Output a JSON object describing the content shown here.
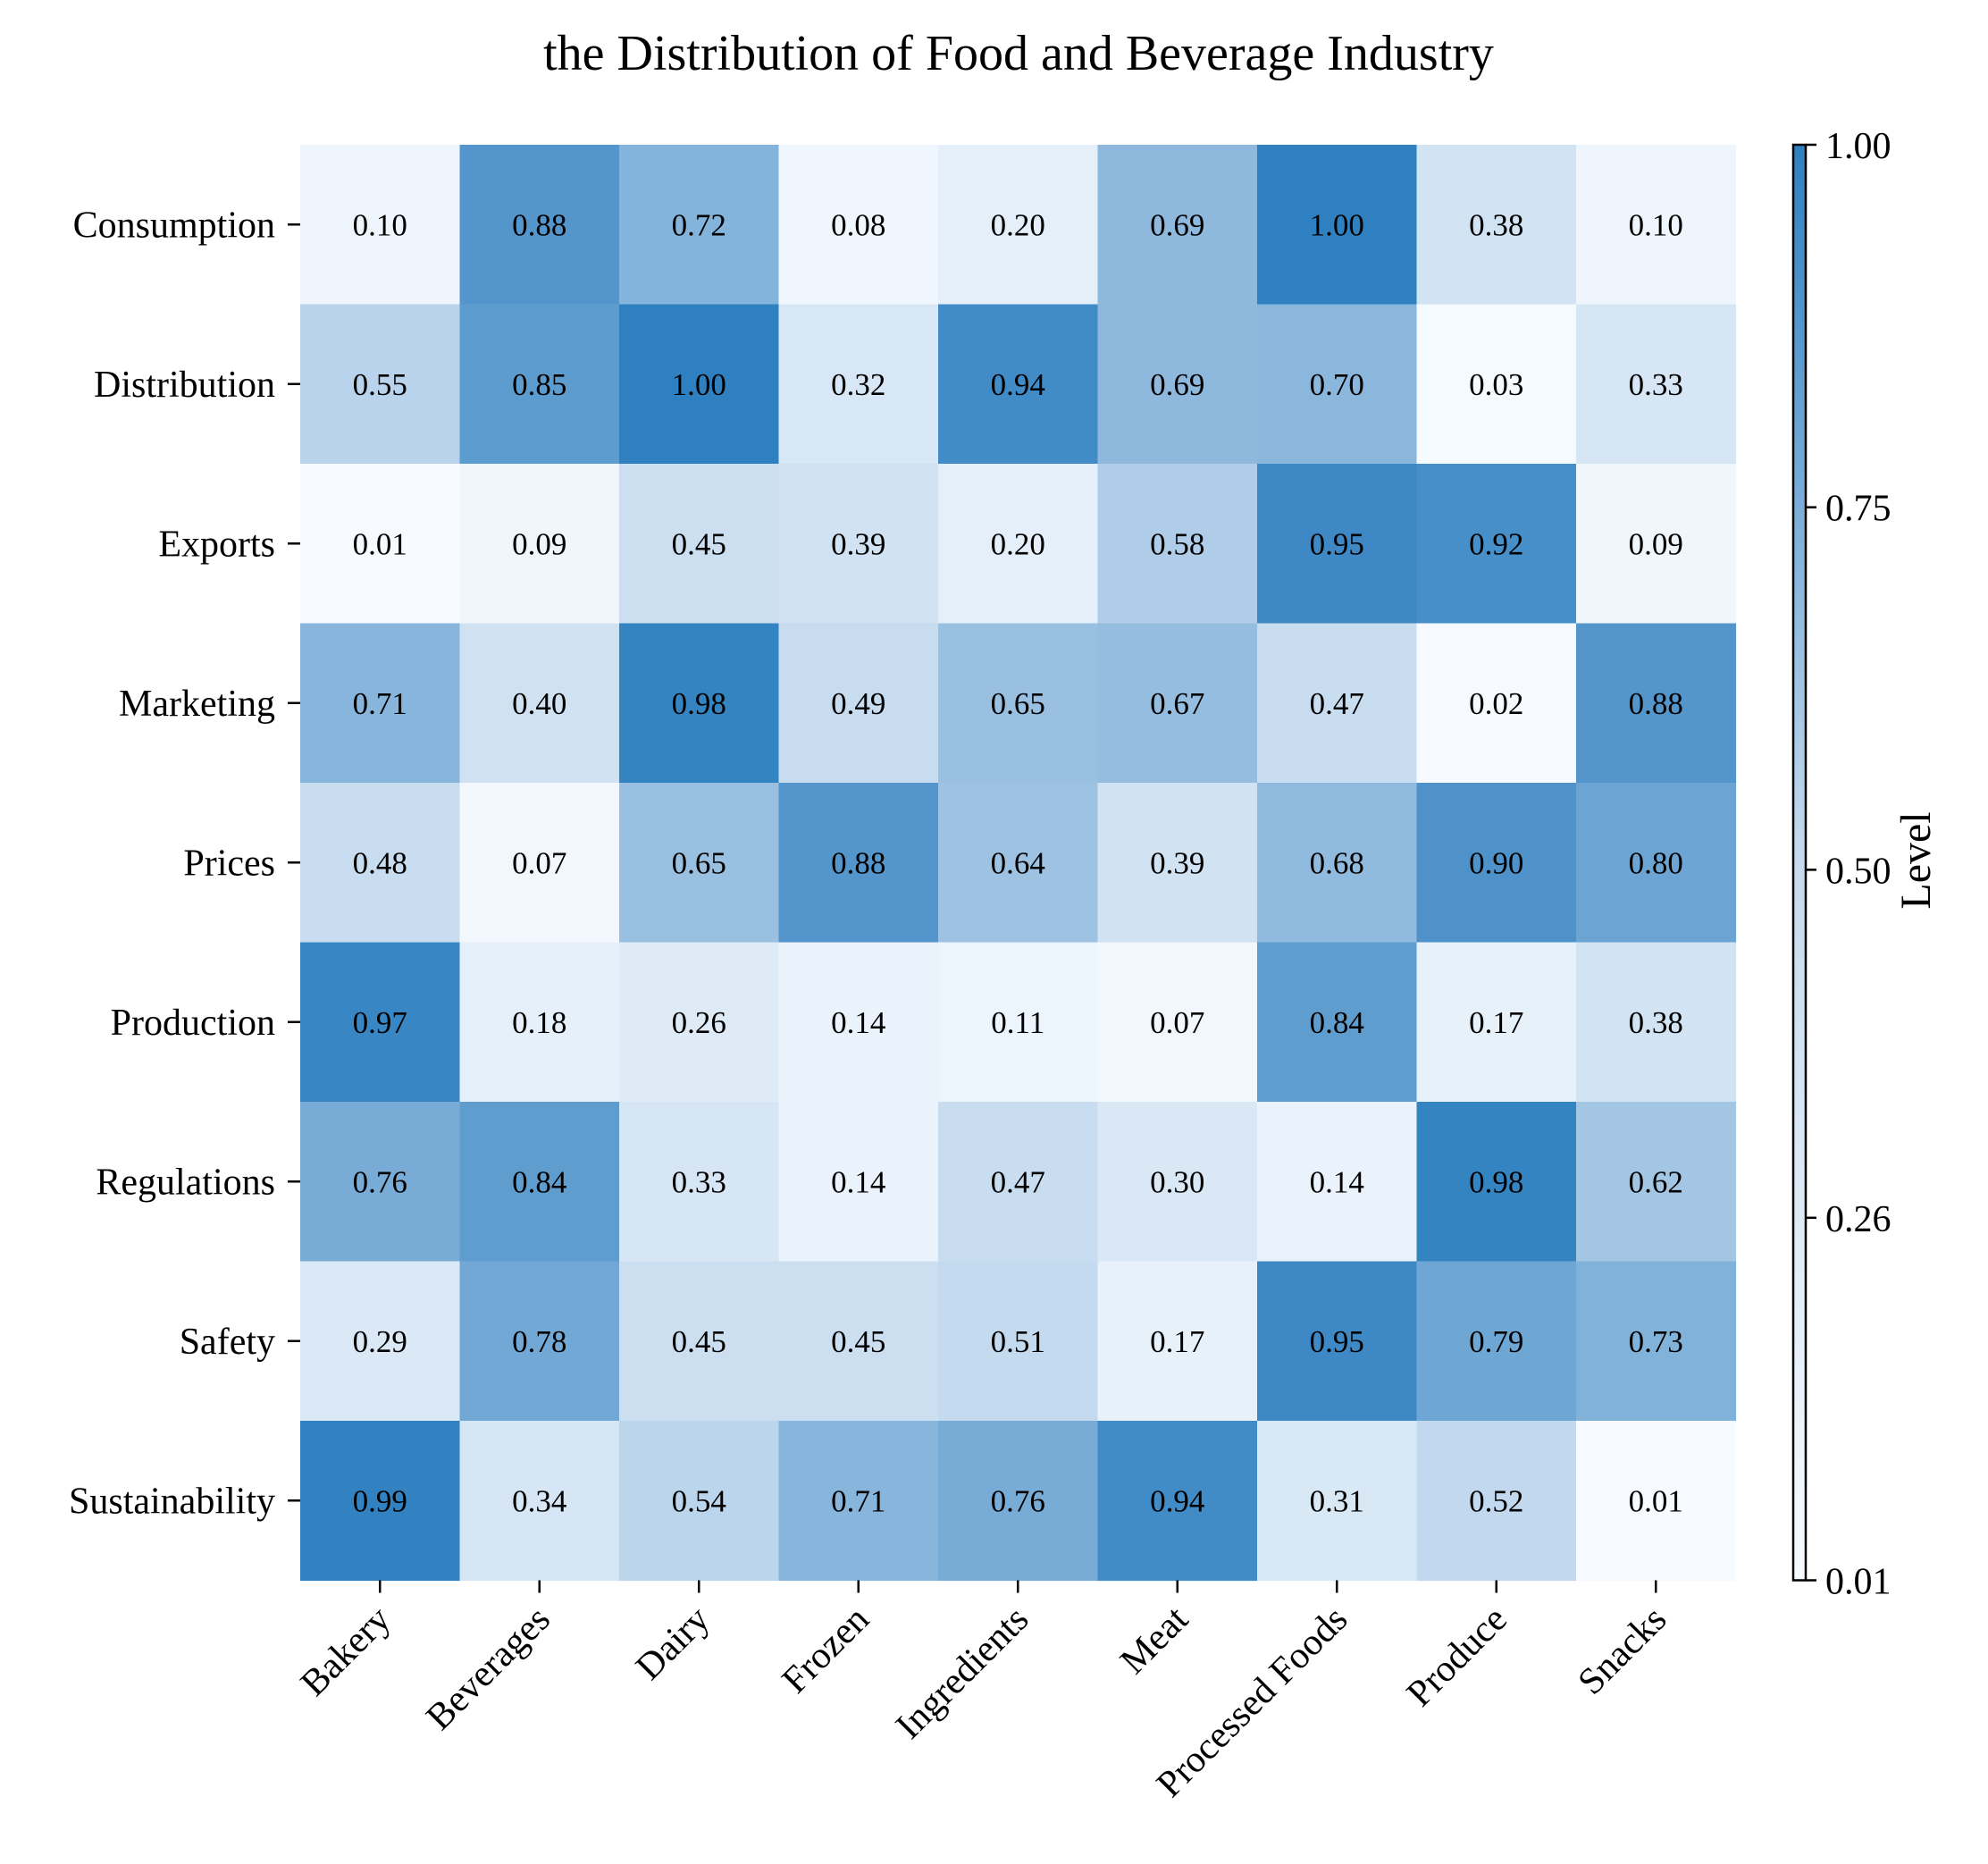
{
  "chart_data": {
    "type": "heatmap",
    "title": "the Distribution of Food and Beverage Industry",
    "rows": [
      "Consumption",
      "Distribution",
      "Exports",
      "Marketing",
      "Prices",
      "Production",
      "Regulations",
      "Safety",
      "Sustainability"
    ],
    "columns": [
      "Bakery",
      "Beverages",
      "Dairy",
      "Frozen",
      "Ingredients",
      "Meat",
      "Processed Foods",
      "Produce",
      "Snacks"
    ],
    "values": [
      [
        0.1,
        0.88,
        0.72,
        0.08,
        0.2,
        0.69,
        1.0,
        0.38,
        0.1
      ],
      [
        0.55,
        0.85,
        1.0,
        0.32,
        0.94,
        0.69,
        0.7,
        0.03,
        0.33
      ],
      [
        0.01,
        0.09,
        0.45,
        0.39,
        0.2,
        0.58,
        0.95,
        0.92,
        0.09
      ],
      [
        0.71,
        0.4,
        0.98,
        0.49,
        0.65,
        0.67,
        0.47,
        0.02,
        0.88
      ],
      [
        0.48,
        0.07,
        0.65,
        0.88,
        0.64,
        0.39,
        0.68,
        0.9,
        0.8
      ],
      [
        0.97,
        0.18,
        0.26,
        0.14,
        0.11,
        0.07,
        0.84,
        0.17,
        0.38
      ],
      [
        0.76,
        0.84,
        0.33,
        0.14,
        0.47,
        0.3,
        0.14,
        0.98,
        0.62
      ],
      [
        0.29,
        0.78,
        0.45,
        0.45,
        0.51,
        0.17,
        0.95,
        0.79,
        0.73
      ],
      [
        0.99,
        0.34,
        0.54,
        0.71,
        0.76,
        0.94,
        0.31,
        0.52,
        0.01
      ]
    ],
    "colorbar": {
      "label": "Level",
      "ticks": [
        "1.00",
        "0.75",
        "0.50",
        "0.26",
        "0.01"
      ],
      "range": [
        0.01,
        1.0
      ],
      "color_low": "#f7fbff",
      "color_high": "#2f80c0"
    },
    "grid": false
  }
}
